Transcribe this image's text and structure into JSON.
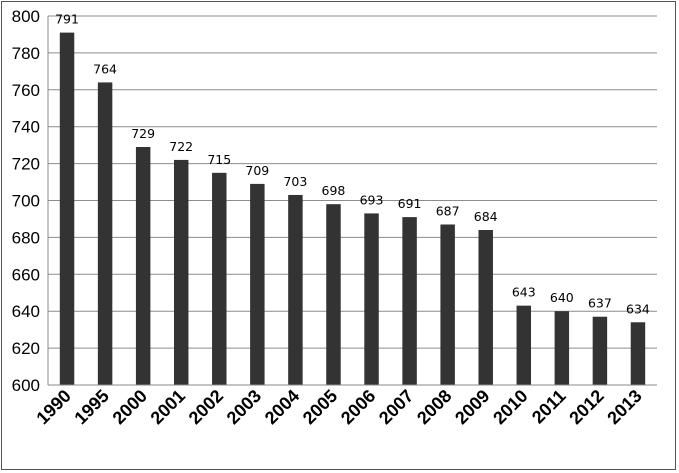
{
  "chart_data": {
    "type": "bar",
    "title": "",
    "xlabel": "",
    "ylabel": "",
    "categories": [
      "1990",
      "1995",
      "2000",
      "2001",
      "2002",
      "2003",
      "2004",
      "2005",
      "2006",
      "2007",
      "2008",
      "2009",
      "2010",
      "2011",
      "2012",
      "2013"
    ],
    "values": [
      791,
      764,
      729,
      722,
      715,
      709,
      703,
      698,
      693,
      691,
      687,
      684,
      643,
      640,
      637,
      634
    ],
    "ylim": [
      600,
      800
    ],
    "yticks": [
      600,
      620,
      640,
      660,
      680,
      700,
      720,
      740,
      760,
      780,
      800
    ],
    "grid": true,
    "legend": "none",
    "bar_color": "#333333",
    "gridline_color": "#8c8c8c"
  }
}
